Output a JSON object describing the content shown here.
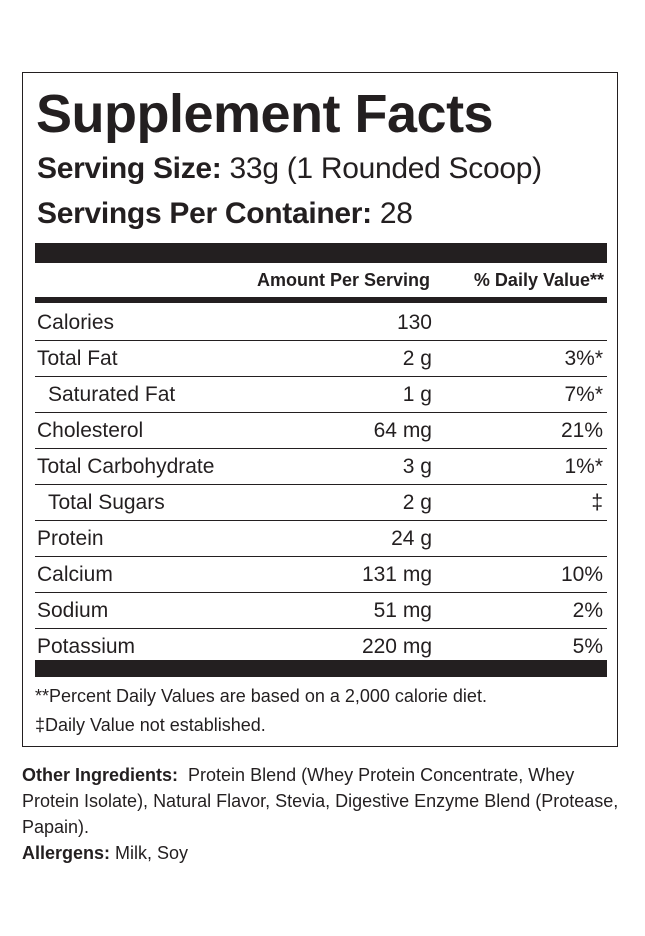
{
  "title": "Supplement Facts",
  "serving_size": {
    "label": "Serving Size:",
    "value": "33g (1 Rounded Scoop)"
  },
  "servings_per_container": {
    "label": "Servings Per Container:",
    "value": "28"
  },
  "header": {
    "amount": "Amount Per Serving",
    "daily_value": "% Daily Value**"
  },
  "rows": [
    {
      "name": "Calories",
      "amount": "130",
      "dv": ""
    },
    {
      "name": "Total Fat",
      "amount": "2 g",
      "dv": "3%*"
    },
    {
      "name": "Saturated Fat",
      "amount": "1 g",
      "dv": "7%*"
    },
    {
      "name": "Cholesterol",
      "amount": "64 mg",
      "dv": "21%"
    },
    {
      "name": "Total Carbohydrate",
      "amount": "3 g",
      "dv": "1%*"
    },
    {
      "name": "Total Sugars",
      "amount": "2 g",
      "dv": "‡"
    },
    {
      "name": "Protein",
      "amount": "24 g",
      "dv": ""
    },
    {
      "name": "Calcium",
      "amount": "131 mg",
      "dv": "10%"
    },
    {
      "name": "Sodium",
      "amount": "51 mg",
      "dv": "2%"
    },
    {
      "name": "Potassium",
      "amount": "220 mg",
      "dv": "5%"
    }
  ],
  "footnotes": [
    "**Percent Daily Values are based on a 2,000 calorie diet.",
    "‡Daily Value not established."
  ],
  "other_ingredients": {
    "label": "Other Ingredients:",
    "text": "Protein Blend (Whey Protein Concentrate, Whey Protein Isolate), Natural Flavor, Stevia, Digestive Enzyme Blend (Protease, Papain)."
  },
  "allergens": {
    "label": "Allergens:",
    "text": "Milk, Soy"
  }
}
